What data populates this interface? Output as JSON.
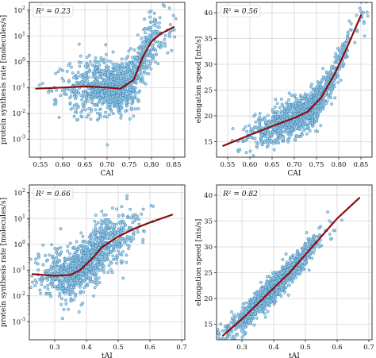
{
  "chart_data": [
    {
      "type": "scatter",
      "r2_label": "R² = 0.23",
      "xlabel": "CAI",
      "ylabel": "protein synthesis rate [molecules/s]",
      "xlim": [
        0.525,
        0.875
      ],
      "ylim_log10": [
        -3.7,
        2.3
      ],
      "yscale": "log",
      "xticks": [
        0.55,
        0.6,
        0.65,
        0.7,
        0.75,
        0.8,
        0.85
      ],
      "xtick_labels": [
        "0.55",
        "0.60",
        "0.65",
        "0.70",
        "0.75",
        "0.80",
        "0.85"
      ],
      "yticks": [
        {
          "sup": "-3",
          "exp": -3
        },
        {
          "sup": "-2",
          "exp": -2
        },
        {
          "sup": "-1",
          "exp": -1
        },
        {
          "sup": "0",
          "exp": 0
        },
        {
          "sup": "1",
          "exp": 1
        },
        {
          "sup": "2",
          "exp": 2
        }
      ],
      "grid": true,
      "legend_position": "top-left",
      "trend": [
        [
          0.54,
          0.09
        ],
        [
          0.6,
          0.1
        ],
        [
          0.65,
          0.11
        ],
        [
          0.7,
          0.1
        ],
        [
          0.73,
          0.09
        ],
        [
          0.76,
          0.2
        ],
        [
          0.78,
          1.5
        ],
        [
          0.8,
          6.0
        ],
        [
          0.82,
          12.0
        ],
        [
          0.85,
          22.0
        ]
      ],
      "scatter_model": {
        "n": 1100,
        "x_mean": 0.72,
        "x_sd": 0.055,
        "spread": 0.55
      }
    },
    {
      "type": "scatter",
      "r2_label": "R² = 0.56",
      "xlabel": "CAI",
      "ylabel": "elongation speed [nts/s]",
      "xlim": [
        0.525,
        0.875
      ],
      "ylim": [
        12,
        42
      ],
      "yscale": "linear",
      "xticks": [
        0.55,
        0.6,
        0.65,
        0.7,
        0.75,
        0.8,
        0.85
      ],
      "xtick_labels": [
        "0.55",
        "0.60",
        "0.65",
        "0.70",
        "0.75",
        "0.80",
        "0.85"
      ],
      "yticks": [
        15,
        20,
        25,
        30,
        35,
        40
      ],
      "ytick_labels": [
        "15",
        "20",
        "25",
        "30",
        "35",
        "40"
      ],
      "grid": true,
      "legend_position": "top-left",
      "trend": [
        [
          0.54,
          14.2
        ],
        [
          0.6,
          16.3
        ],
        [
          0.65,
          18.0
        ],
        [
          0.7,
          19.6
        ],
        [
          0.73,
          20.8
        ],
        [
          0.76,
          23.5
        ],
        [
          0.79,
          28.0
        ],
        [
          0.82,
          33.5
        ],
        [
          0.85,
          39.5
        ]
      ],
      "scatter_model": {
        "n": 1100,
        "x_mean": 0.72,
        "x_sd": 0.055,
        "spread": 1.8
      }
    },
    {
      "type": "scatter",
      "r2_label": "R² = 0.66",
      "xlabel": "tAI",
      "ylabel": "protein synthesis rate [molecules/s]",
      "xlim": [
        0.22,
        0.71
      ],
      "ylim_log10": [
        -3.7,
        2.3
      ],
      "yscale": "log",
      "xticks": [
        0.3,
        0.4,
        0.5,
        0.6,
        0.7
      ],
      "xtick_labels": [
        "0.3",
        "0.4",
        "0.5",
        "0.6",
        "0.7"
      ],
      "yticks": [
        {
          "sup": "-3",
          "exp": -3
        },
        {
          "sup": "-2",
          "exp": -2
        },
        {
          "sup": "-1",
          "exp": -1
        },
        {
          "sup": "0",
          "exp": 0
        },
        {
          "sup": "1",
          "exp": 1
        },
        {
          "sup": "2",
          "exp": 2
        }
      ],
      "grid": true,
      "legend_position": "top-left",
      "trend": [
        [
          0.23,
          0.07
        ],
        [
          0.3,
          0.06
        ],
        [
          0.35,
          0.065
        ],
        [
          0.38,
          0.1
        ],
        [
          0.42,
          0.3
        ],
        [
          0.45,
          0.8
        ],
        [
          0.5,
          2.0
        ],
        [
          0.55,
          4.0
        ],
        [
          0.6,
          7.0
        ],
        [
          0.67,
          14.0
        ]
      ],
      "scatter_model": {
        "n": 1100,
        "x_mean": 0.4,
        "x_sd": 0.07,
        "spread": 0.5
      }
    },
    {
      "type": "scatter",
      "r2_label": "R² = 0.82",
      "xlabel": "tAI",
      "ylabel": "elongation speed [nts/s]",
      "xlim": [
        0.22,
        0.71
      ],
      "ylim": [
        12,
        42
      ],
      "yscale": "linear",
      "xticks": [
        0.3,
        0.4,
        0.5,
        0.6,
        0.7
      ],
      "xtick_labels": [
        "0.3",
        "0.4",
        "0.5",
        "0.6",
        "0.7"
      ],
      "yticks": [
        15,
        20,
        25,
        30,
        35,
        40
      ],
      "ytick_labels": [
        "15",
        "20",
        "25",
        "30",
        "35",
        "40"
      ],
      "grid": true,
      "legend_position": "top-left",
      "trend": [
        [
          0.24,
          12.8
        ],
        [
          0.3,
          16.0
        ],
        [
          0.35,
          19.0
        ],
        [
          0.4,
          22.0
        ],
        [
          0.45,
          25.0
        ],
        [
          0.5,
          28.5
        ],
        [
          0.55,
          32.0
        ],
        [
          0.6,
          35.5
        ],
        [
          0.67,
          39.5
        ]
      ],
      "scatter_model": {
        "n": 1100,
        "x_mean": 0.4,
        "x_sd": 0.07,
        "spread": 1.3
      }
    }
  ]
}
